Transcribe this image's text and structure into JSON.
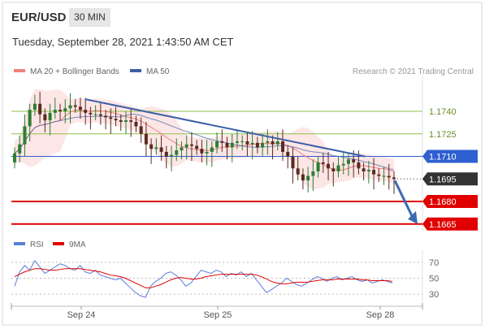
{
  "header": {
    "symbol": "EUR/USD",
    "timeframe": "30 MIN",
    "timestamp": "Tuesday, September 28, 2021 1:43:50 AM CET"
  },
  "legend": {
    "ma20_label": "MA 20 + Bollinger Bands",
    "ma50_label": "MA 50",
    "credit": "Research © 2021 Trading Central",
    "rsi_label": "RSI",
    "rsi_ma_label": "9MA"
  },
  "colors": {
    "ma20": "#f08080",
    "ma50": "#3a5fa8",
    "bollinger": "#fde3e3",
    "candle_up": "#2e7d32",
    "candle_down": "#5a2a20",
    "trendline": "#3a5fa8",
    "level_green": "#8bc34a",
    "level_blue": "#2f5fd0",
    "level_red": "#e00000",
    "rsi": "#5b7fd6",
    "rsi_ma": "#e00000",
    "current_price_bg": "#333333"
  },
  "chart_data": [
    {
      "type": "candlestick",
      "title": "",
      "xlabel": "",
      "ylabel": "",
      "x_ticks": [
        "Sep 24",
        "Sep 25",
        "Sep 28"
      ],
      "ylim": [
        1.166,
        1.176
      ],
      "closes": [
        1.1712,
        1.1718,
        1.173,
        1.1741,
        1.1745,
        1.1738,
        1.1734,
        1.1739,
        1.1741,
        1.174,
        1.1742,
        1.1744,
        1.1743,
        1.1741,
        1.1739,
        1.1738,
        1.1738,
        1.1737,
        1.1736,
        1.1735,
        1.1734,
        1.1733,
        1.1734,
        1.1733,
        1.173,
        1.1725,
        1.1718,
        1.1715,
        1.1716,
        1.1713,
        1.171,
        1.1711,
        1.1714,
        1.1716,
        1.1718,
        1.1717,
        1.1715,
        1.1712,
        1.1713,
        1.1716,
        1.172,
        1.1719,
        1.1716,
        1.1719,
        1.172,
        1.172,
        1.1718,
        1.1719,
        1.1716,
        1.1719,
        1.172,
        1.1718,
        1.172,
        1.1713,
        1.171,
        1.1702,
        1.1698,
        1.1694,
        1.1697,
        1.17,
        1.1706,
        1.1705,
        1.1702,
        1.17,
        1.1704,
        1.1705,
        1.1708,
        1.1706,
        1.1702,
        1.17,
        1.1701,
        1.1698,
        1.1697,
        1.1697,
        1.1696,
        1.1695
      ],
      "levels": [
        {
          "label": "1.1740",
          "value": 1.174,
          "style": "green"
        },
        {
          "label": "1.1725",
          "value": 1.1725,
          "style": "green"
        },
        {
          "label": "1.1710",
          "value": 1.171,
          "style": "blue-tag"
        },
        {
          "label": "1.1695",
          "value": 1.1695,
          "style": "current-price"
        },
        {
          "label": "1.1680",
          "value": 1.168,
          "style": "red-tag"
        },
        {
          "label": "1.1665",
          "value": 1.1665,
          "style": "red-tag"
        }
      ],
      "trendline": {
        "from": [
          0.18,
          1.1748
        ],
        "to": [
          0.86,
          1.171
        ]
      },
      "forecast_arrow": {
        "from_value": 1.1695,
        "to_value": 1.1665
      }
    },
    {
      "type": "line",
      "title": "",
      "ylim": [
        20,
        80
      ],
      "y_ticks": [
        "70",
        "50",
        "30"
      ],
      "series": [
        {
          "name": "RSI",
          "values": [
            40,
            58,
            66,
            60,
            72,
            64,
            56,
            60,
            64,
            68,
            66,
            62,
            60,
            66,
            58,
            56,
            60,
            54,
            52,
            50,
            48,
            50,
            44,
            38,
            32,
            28,
            26,
            40,
            46,
            50,
            56,
            58,
            54,
            48,
            40,
            44,
            52,
            60,
            58,
            56,
            60,
            58,
            52,
            56,
            54,
            58,
            52,
            56,
            48,
            40,
            32,
            36,
            40,
            44,
            50,
            46,
            42,
            40,
            44,
            48,
            52,
            50,
            46,
            50,
            52,
            48,
            50,
            52,
            48,
            46,
            48,
            44,
            46,
            48,
            46,
            44
          ]
        },
        {
          "name": "9MA",
          "values": [
            52,
            55,
            58,
            60,
            62,
            62,
            61,
            60,
            60,
            61,
            62,
            62,
            62,
            62,
            61,
            60,
            59,
            58,
            56,
            54,
            53,
            52,
            50,
            47,
            44,
            41,
            38,
            38,
            40,
            42,
            45,
            48,
            50,
            51,
            50,
            49,
            49,
            50,
            52,
            53,
            54,
            55,
            55,
            55,
            55,
            55,
            55,
            55,
            54,
            52,
            49,
            46,
            44,
            43,
            43,
            44,
            45,
            45,
            45,
            46,
            47,
            48,
            48,
            48,
            49,
            49,
            49,
            49,
            49,
            48,
            48,
            47,
            47,
            47,
            47,
            46
          ]
        }
      ]
    }
  ]
}
